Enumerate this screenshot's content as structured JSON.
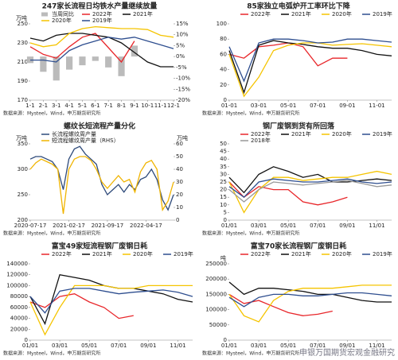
{
  "chart_data": [
    {
      "type": "line",
      "title": "247家长流程日均铁水产量继续放量",
      "y_label": "万吨",
      "source": "数据来源：Mysteel，Wind，申万期货研究所",
      "categories": [
        "1-1",
        "2-1",
        "3-1",
        "4-1",
        "5-1",
        "6-1",
        "7-1",
        "8-1",
        "9-1",
        "10-1",
        "11-1",
        "12-1"
      ],
      "ylim": [
        170,
        250
      ],
      "yticks": [
        170,
        190,
        210,
        230,
        250
      ],
      "y2lim": [
        -20,
        15
      ],
      "y2ticks": [
        {
          "value": -20,
          "label": "-20%"
        },
        {
          "value": -15,
          "label": "-15%"
        },
        {
          "value": -10,
          "label": "-10%"
        },
        {
          "value": -5,
          "label": "-5%"
        },
        {
          "value": 0,
          "label": "0%"
        },
        {
          "value": 5,
          "label": "5%"
        },
        {
          "value": 10,
          "label": "10%"
        },
        {
          "value": 15,
          "label": "15%"
        }
      ],
      "series": [
        {
          "name": "当周同比",
          "type": "bar",
          "axis": "y2",
          "color": "#bbbbbb",
          "values": [
            -3,
            -7,
            -11,
            -6,
            -4,
            -2,
            -5,
            -9,
            5,
            null,
            null,
            null
          ]
        },
        {
          "name": "2022年",
          "color": "#e8262a",
          "values": [
            226,
            218,
            214,
            226,
            236,
            240,
            225,
            210,
            232,
            null,
            null,
            null
          ]
        },
        {
          "name": "2021年",
          "color": "#111111",
          "values": [
            235,
            232,
            238,
            240,
            240,
            238,
            236,
            230,
            220,
            210,
            205,
            205
          ]
        },
        {
          "name": "2020年",
          "color": "#f5c400",
          "values": [
            230,
            226,
            228,
            240,
            245,
            247,
            246,
            245,
            245,
            244,
            238,
            236
          ]
        },
        {
          "name": "2019年",
          "color": "#2e4e8f",
          "values": [
            212,
            212,
            210,
            222,
            228,
            232,
            236,
            234,
            236,
            232,
            228,
            224
          ]
        }
      ]
    },
    {
      "type": "line",
      "title": "85家独立电弧炉开工率环比下降",
      "source": "数据来源：Mysteel，Wind，申万期货研究所",
      "categories": [
        "01-01",
        null,
        "03-01",
        null,
        "05-01",
        null,
        "07-01",
        null,
        "09-01",
        null,
        "11-01",
        null
      ],
      "ylim": [
        0,
        100
      ],
      "yticks": [
        0,
        20,
        40,
        60,
        80,
        100
      ],
      "series": [
        {
          "name": "2022年",
          "color": "#e8262a",
          "values": [
            60,
            55,
            70,
            72,
            75,
            70,
            45,
            55,
            55,
            null,
            null,
            null
          ]
        },
        {
          "name": "2021年",
          "color": "#111111",
          "values": [
            65,
            10,
            72,
            78,
            75,
            73,
            70,
            68,
            68,
            65,
            60,
            58
          ]
        },
        {
          "name": "2020年",
          "color": "#f5c400",
          "values": [
            60,
            5,
            30,
            65,
            72,
            75,
            75,
            72,
            73,
            74,
            72,
            70
          ]
        },
        {
          "name": "2019年",
          "color": "#2e4e8f",
          "values": [
            70,
            25,
            75,
            80,
            80,
            78,
            75,
            76,
            80,
            80,
            78,
            76
          ]
        }
      ]
    },
    {
      "type": "line",
      "title": "螺纹长短流程产量分化",
      "y_label": "万吨",
      "y2_label": "万吨",
      "source": "数据来源：Mysteel，Wind，申万期货研究所",
      "categories": [
        "2020-07-17",
        null,
        null,
        null,
        null,
        null,
        null,
        "2021-02-17",
        null,
        null,
        null,
        null,
        null,
        null,
        "2021-09-17",
        null,
        null,
        null,
        null,
        null,
        null,
        "2022-04-17",
        null,
        null,
        null,
        null,
        null
      ],
      "ylim": [
        200,
        350
      ],
      "yticks": [
        200,
        250,
        300,
        350
      ],
      "y2lim": [
        0,
        60
      ],
      "y2ticks": [
        0,
        10,
        20,
        30,
        40,
        50,
        60
      ],
      "series": [
        {
          "name": "长流程螺纹周产量",
          "color": "#2e4a7a",
          "values": [
            320,
            325,
            325,
            320,
            315,
            300,
            260,
            320,
            340,
            345,
            330,
            320,
            310,
            270,
            250,
            260,
            270,
            255,
            270,
            260,
            280,
            285,
            300,
            280,
            240,
            220,
            250
          ]
        },
        {
          "name": "短流程螺纹周产量（RHS）",
          "axis": "y2",
          "color": "#f0b400",
          "values": [
            40,
            45,
            48,
            46,
            44,
            40,
            5,
            40,
            48,
            50,
            50,
            47,
            40,
            30,
            25,
            30,
            35,
            30,
            32,
            22,
            38,
            45,
            47,
            40,
            8,
            15,
            30
          ]
        }
      ]
    },
    {
      "type": "line",
      "title": "钢厂废钢到货有所回落",
      "source": "数据来源：Mysteel，Wind，申万期货研究所",
      "categories": [
        "01/01",
        null,
        "03/01",
        null,
        "05/01",
        null,
        "07/01",
        null,
        "09/01",
        null,
        "11/01",
        null
      ],
      "ylim": [
        0,
        50
      ],
      "yticks": [
        0,
        5,
        10,
        15,
        20,
        25,
        30,
        35,
        40,
        45,
        50
      ],
      "series": [
        {
          "name": "2022年",
          "color": "#e8262a",
          "values": [
            25,
            15,
            22,
            20,
            20,
            12,
            10,
            12,
            15,
            null,
            null,
            null
          ]
        },
        {
          "name": "2021年",
          "color": "#111111",
          "values": [
            28,
            18,
            30,
            35,
            32,
            28,
            30,
            25,
            25,
            26,
            27,
            26
          ]
        },
        {
          "name": "2020年",
          "color": "#f5c400",
          "values": [
            25,
            5,
            20,
            28,
            28,
            26,
            27,
            28,
            28,
            30,
            32,
            30
          ]
        },
        {
          "name": "2019年",
          "color": "#2e4e8f",
          "values": [
            22,
            15,
            25,
            27,
            26,
            25,
            25,
            26,
            27,
            25,
            24,
            25
          ]
        },
        {
          "name": "2018年",
          "color": "#999999",
          "values": [
            20,
            12,
            20,
            25,
            24,
            23,
            24,
            25,
            26,
            24,
            22,
            23
          ]
        }
      ]
    },
    {
      "type": "line",
      "title": "富宝49家短流程钢厂废钢日耗",
      "source": "数据来源：Mysteel，Wind，申万期货研究所",
      "categories": [
        "01/01",
        null,
        "03/01",
        null,
        "05/01",
        null,
        "07/01",
        null,
        "09/01",
        null,
        "11/01",
        null
      ],
      "ylim": [
        0,
        140000
      ],
      "yticks": [
        0,
        20000,
        40000,
        60000,
        80000,
        100000,
        120000,
        140000
      ],
      "series": [
        {
          "name": "2022年",
          "color": "#e8262a",
          "values": [
            70000,
            60000,
            80000,
            85000,
            70000,
            60000,
            40000,
            45000,
            null,
            null,
            null,
            null
          ]
        },
        {
          "name": "2021年",
          "color": "#111111",
          "values": [
            80000,
            30000,
            120000,
            115000,
            110000,
            100000,
            95000,
            95000,
            90000,
            85000,
            75000,
            70000
          ]
        },
        {
          "name": "2020年",
          "color": "#f5c400",
          "values": [
            70000,
            10000,
            60000,
            100000,
            100000,
            100000,
            95000,
            95000,
            100000,
            100000,
            100000,
            100000
          ]
        },
        {
          "name": "2019年",
          "color": "#2e4e8f",
          "values": [
            80000,
            50000,
            90000,
            95000,
            95000,
            90000,
            85000,
            88000,
            90000,
            92000,
            88000,
            80000
          ]
        }
      ]
    },
    {
      "type": "line",
      "title": "富宝70家长流程钢厂废钢日耗",
      "y_label": "吨",
      "source": "数据来源：Mysteel，Wind，申万期货研究所",
      "categories": [
        "01/01",
        null,
        "03/01",
        null,
        "05/01",
        null,
        "07/01",
        null,
        "09/01",
        null,
        "11/01",
        null
      ],
      "ylim": [
        0,
        250000
      ],
      "yticks": [
        0,
        50000,
        100000,
        150000,
        200000,
        250000
      ],
      "series": [
        {
          "name": "2022年",
          "color": "#e8262a",
          "values": [
            150000,
            120000,
            130000,
            110000,
            90000,
            80000,
            85000,
            95000,
            null,
            null,
            null,
            null
          ]
        },
        {
          "name": "2021年",
          "color": "#111111",
          "values": [
            190000,
            150000,
            170000,
            170000,
            165000,
            160000,
            150000,
            150000,
            140000,
            130000,
            125000,
            125000
          ]
        },
        {
          "name": "2020年",
          "color": "#f5c400",
          "values": [
            150000,
            80000,
            60000,
            130000,
            160000,
            170000,
            170000,
            170000,
            175000,
            180000,
            180000,
            180000
          ]
        },
        {
          "name": "2019年",
          "color": "#2e4e8f",
          "values": [
            140000,
            110000,
            140000,
            150000,
            150000,
            145000,
            145000,
            150000,
            155000,
            155000,
            150000,
            145000
          ]
        }
      ]
    }
  ],
  "watermark": "申银万国期货宏观金融研究"
}
